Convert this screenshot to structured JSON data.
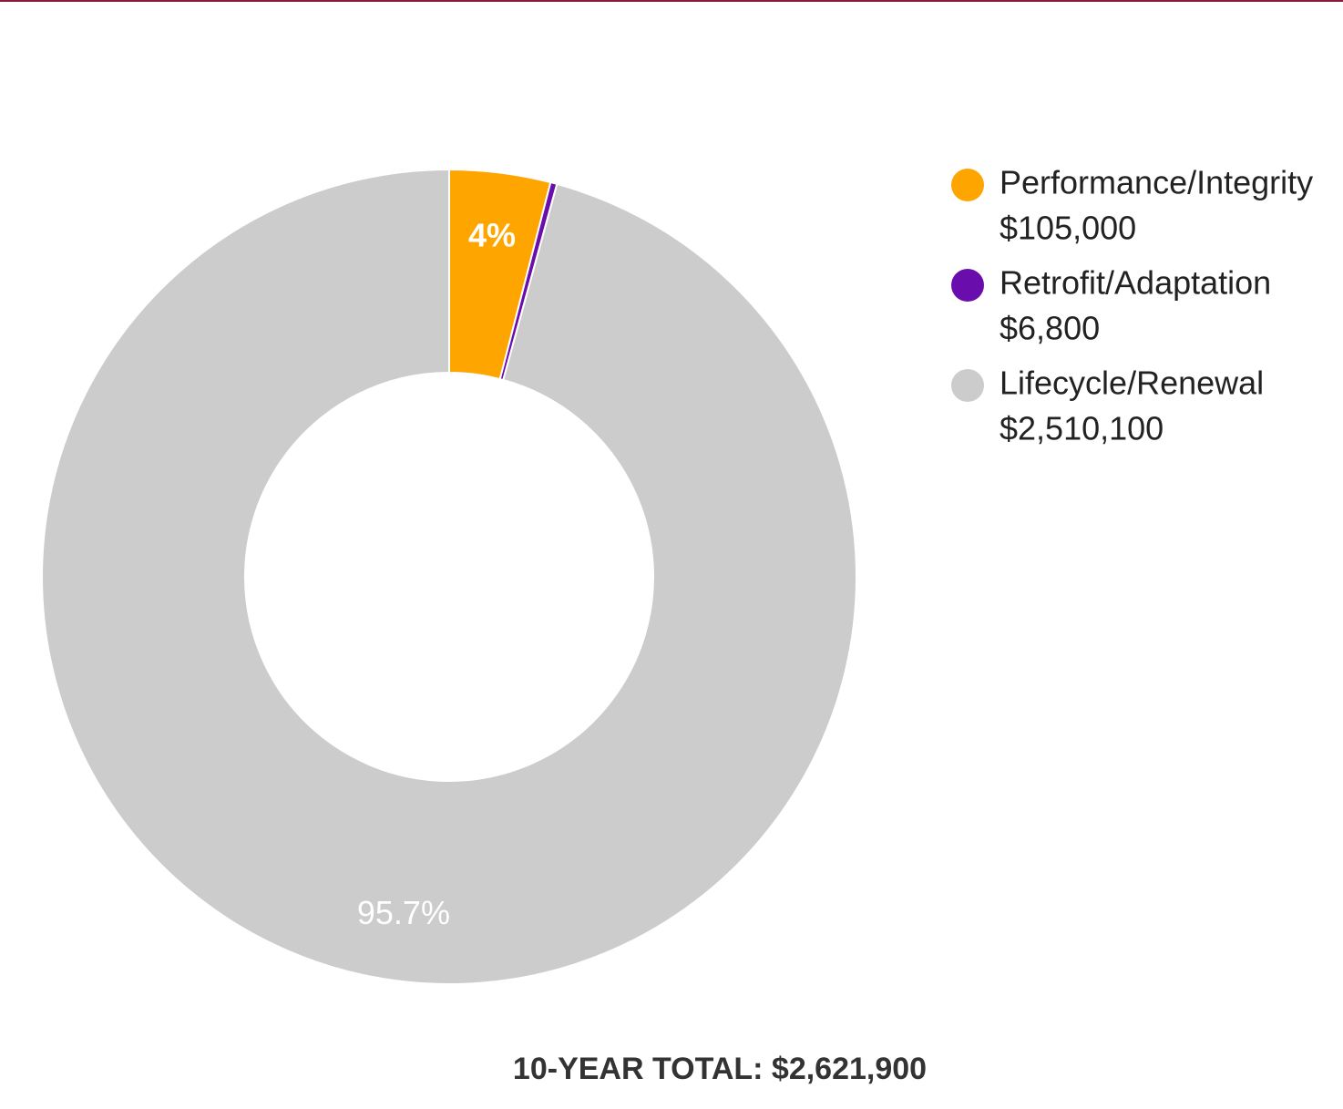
{
  "chart_data": {
    "type": "donut",
    "categories": [
      "Performance/Integrity",
      "Retrofit/Adaptation",
      "Lifecycle/Renewal"
    ],
    "values": [
      105000,
      6800,
      2510100
    ],
    "value_labels": [
      "$105,000",
      "$6,800",
      "$2,510,100"
    ],
    "slice_labels": [
      "4%",
      null,
      "95.7%"
    ],
    "colors": [
      "#ffa500",
      "#6a0dad",
      "#cccccc"
    ],
    "footer": "10-YEAR TOTAL: $2,621,900"
  }
}
